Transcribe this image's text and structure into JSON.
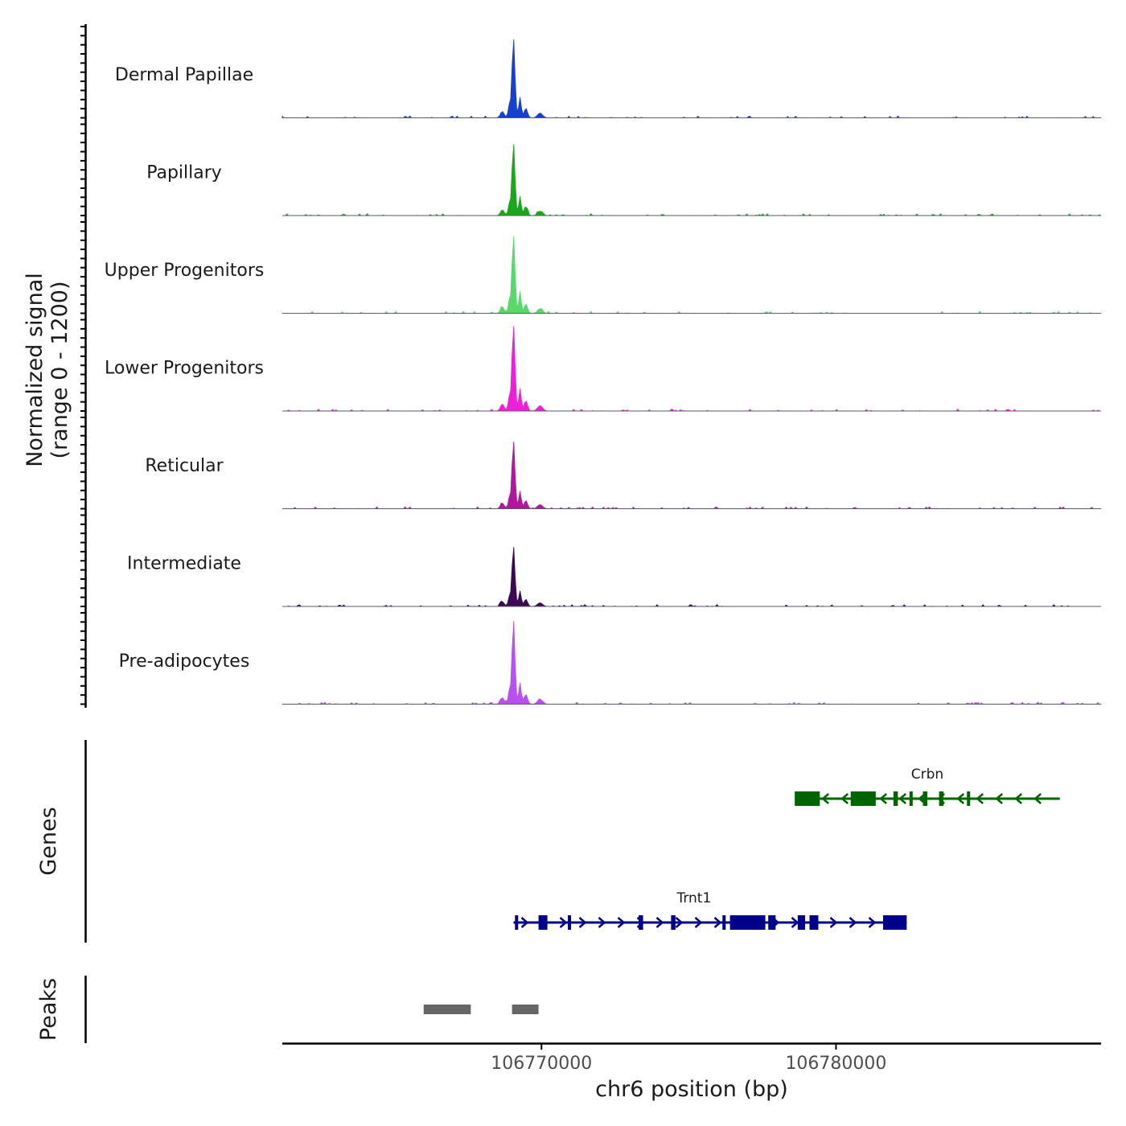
{
  "chart_data": {
    "type": "area",
    "title": "",
    "chromosome": "chr6",
    "xlabel": "chr6 position (bp)",
    "ylabel_line1": "Normalized signal",
    "ylabel_line2": "(range 0 - 1200)",
    "ylim": [
      0,
      1200
    ],
    "xlim": [
      106761200,
      106789000
    ],
    "x_ticks": [
      {
        "value": 106770000,
        "label": "106770000"
      },
      {
        "value": 106780000,
        "label": "106780000"
      }
    ],
    "tracks": [
      {
        "name": "Dermal Papillae",
        "color": "#1540d0",
        "peak": 1030
      },
      {
        "name": "Papillary",
        "color": "#1aa81a",
        "peak": 940
      },
      {
        "name": "Upper Progenitors",
        "color": "#5ad86a",
        "peak": 1010
      },
      {
        "name": "Lower Progenitors",
        "color": "#ee1fd8",
        "peak": 1115
      },
      {
        "name": "Reticular",
        "color": "#b0179e",
        "peak": 880
      },
      {
        "name": "Intermediate",
        "color": "#3a0a55",
        "peak": 780
      },
      {
        "name": "Pre-adipocytes",
        "color": "#b84ff0",
        "peak": 1070
      }
    ],
    "genes_label": "Genes",
    "genes": [
      {
        "name": "Crbn",
        "strand": "-",
        "color": "#006400",
        "start": 106778600,
        "end": 106787600,
        "exons": [
          [
            106778600,
            106779450
          ],
          [
            106780500,
            106781350
          ],
          [
            106781950,
            106782100
          ],
          [
            106782950,
            106783100
          ],
          [
            106783500,
            106783650
          ]
        ],
        "small_exons": [
          106782550,
          106784500
        ]
      },
      {
        "name": "Trnt1",
        "strand": "+",
        "color": "#00008b",
        "start": 106769050,
        "end": 106782400,
        "exons": [
          [
            106769100,
            106769200
          ],
          [
            106769900,
            106770200
          ],
          [
            106773300,
            106773450
          ],
          [
            106774400,
            106774550
          ],
          [
            106776400,
            106777600
          ],
          [
            106777700,
            106777950
          ],
          [
            106778700,
            106778950
          ],
          [
            106779100,
            106779400
          ],
          [
            106781600,
            106782400
          ]
        ],
        "small_exons": [
          106770950,
          106776200
        ]
      }
    ],
    "peaks_label": "Peaks",
    "peaks": [
      [
        106766000,
        106767600
      ],
      [
        106769000,
        106769900
      ]
    ]
  }
}
